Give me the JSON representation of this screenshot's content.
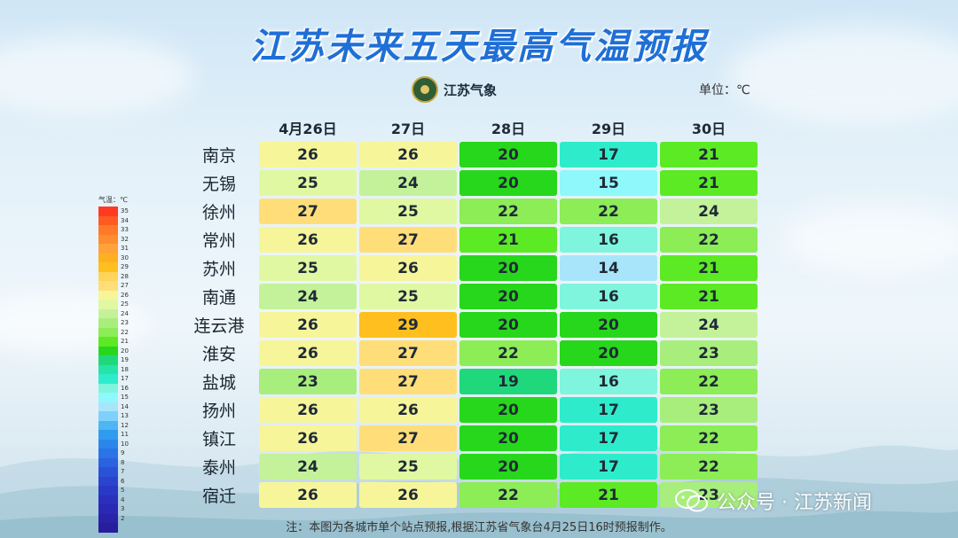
{
  "title": "江苏未来五天最高气温预报",
  "brand": {
    "name": "江苏气象",
    "icon": "meteorological-emblem-icon"
  },
  "unit_label": "单位：℃",
  "note": "注：本图为各城市单个站点预报,根据江苏省气象台4月25日16时预报制作。",
  "watermark": {
    "icon": "wechat-icon",
    "text": "公众号 · 江苏新闻"
  },
  "legend": {
    "title": "气温：℃",
    "levels": [
      {
        "label": "35",
        "color": "#ff3a21"
      },
      {
        "label": "34",
        "color": "#ff5a22"
      },
      {
        "label": "33",
        "color": "#ff7a28"
      },
      {
        "label": "32",
        "color": "#ff8c30"
      },
      {
        "label": "31",
        "color": "#ffa23a"
      },
      {
        "label": "30",
        "color": "#ffb020"
      },
      {
        "label": "29",
        "color": "#ffbf1f"
      },
      {
        "label": "28",
        "color": "#ffd45a"
      },
      {
        "label": "27",
        "color": "#ffde7a"
      },
      {
        "label": "26",
        "color": "#f7f59a"
      },
      {
        "label": "25",
        "color": "#e1f8a2"
      },
      {
        "label": "24",
        "color": "#c4f29a"
      },
      {
        "label": "23",
        "color": "#a8ee7c"
      },
      {
        "label": "22",
        "color": "#8ced56"
      },
      {
        "label": "21",
        "color": "#5bea24"
      },
      {
        "label": "20",
        "color": "#27d71b"
      },
      {
        "label": "19",
        "color": "#1fd87c"
      },
      {
        "label": "18",
        "color": "#25e4a8"
      },
      {
        "label": "17",
        "color": "#2eeccb"
      },
      {
        "label": "16",
        "color": "#7ff5dd"
      },
      {
        "label": "15",
        "color": "#8ff8fb"
      },
      {
        "label": "14",
        "color": "#a8e5fb"
      },
      {
        "label": "13",
        "color": "#7fd0fb"
      },
      {
        "label": "12",
        "color": "#4fb6f4"
      },
      {
        "label": "11",
        "color": "#2f9cf0"
      },
      {
        "label": "10",
        "color": "#2b86ec"
      },
      {
        "label": "9",
        "color": "#2a74e6"
      },
      {
        "label": "8",
        "color": "#2a62df"
      },
      {
        "label": "7",
        "color": "#2a52d6"
      },
      {
        "label": "6",
        "color": "#2a44cf"
      },
      {
        "label": "5",
        "color": "#2a38c6"
      },
      {
        "label": "4",
        "color": "#2a2fbd"
      },
      {
        "label": "3",
        "color": "#2a28b4"
      },
      {
        "label": "2",
        "color": "#2a22a8"
      },
      {
        "label": "",
        "color": "#281d9a"
      }
    ]
  },
  "chart_data": {
    "type": "table",
    "title": "江苏未来五天最高气温预报",
    "unit": "℃",
    "columns": [
      "4月26日",
      "27日",
      "28日",
      "29日",
      "30日"
    ],
    "rows": [
      {
        "city": "南京",
        "values": [
          26,
          26,
          20,
          17,
          21
        ]
      },
      {
        "city": "无锡",
        "values": [
          25,
          24,
          20,
          15,
          21
        ]
      },
      {
        "city": "徐州",
        "values": [
          27,
          25,
          22,
          22,
          24
        ]
      },
      {
        "city": "常州",
        "values": [
          26,
          27,
          21,
          16,
          22
        ]
      },
      {
        "city": "苏州",
        "values": [
          25,
          26,
          20,
          14,
          21
        ]
      },
      {
        "city": "南通",
        "values": [
          24,
          25,
          20,
          16,
          21
        ]
      },
      {
        "city": "连云港",
        "values": [
          26,
          29,
          20,
          20,
          24
        ]
      },
      {
        "city": "淮安",
        "values": [
          26,
          27,
          22,
          20,
          23
        ]
      },
      {
        "city": "盐城",
        "values": [
          23,
          27,
          19,
          16,
          22
        ]
      },
      {
        "city": "扬州",
        "values": [
          26,
          26,
          20,
          17,
          23
        ]
      },
      {
        "city": "镇江",
        "values": [
          26,
          27,
          20,
          17,
          22
        ]
      },
      {
        "city": "泰州",
        "values": [
          24,
          25,
          20,
          17,
          22
        ]
      },
      {
        "city": "宿迁",
        "values": [
          26,
          26,
          22,
          21,
          23
        ]
      }
    ]
  }
}
